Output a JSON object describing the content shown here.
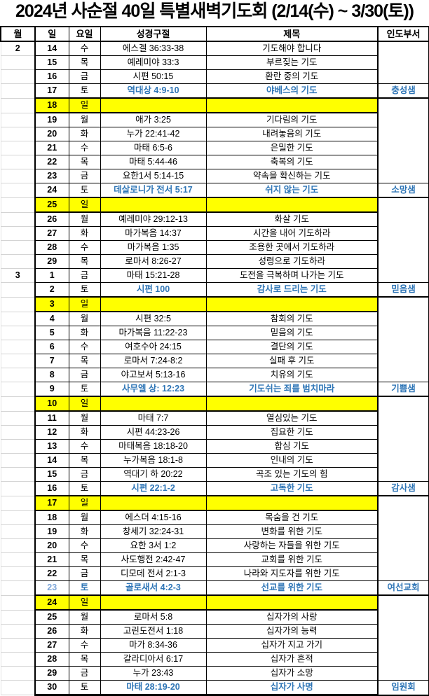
{
  "title": "2024년 사순절 40일 특별새벽기도회 (2/14(수) ~ 3/30(토))",
  "colors": {
    "accent_blue": "#2E75B6",
    "light_blue_day": "#7EA6D8",
    "sunday_highlight": "#FFFF00",
    "grid_black": "#000000",
    "month_gridline": "#D4D4D4"
  },
  "table": {
    "columns": [
      "월",
      "일",
      "요일",
      "성경구절",
      "제목",
      "인도부서"
    ],
    "rows": [
      {
        "month": "2",
        "day": "14",
        "weekday": "수",
        "verse": "에스겔 36:33-38",
        "topic": "기도해야 합니다",
        "leader": ""
      },
      {
        "month": "",
        "day": "15",
        "weekday": "목",
        "verse": "예레미야 33:3",
        "topic": "부르짖는 기도",
        "leader": ""
      },
      {
        "month": "",
        "day": "16",
        "weekday": "금",
        "verse": "시편 50:15",
        "topic": "환란 중의 기도",
        "leader": ""
      },
      {
        "month": "",
        "day": "17",
        "weekday": "토",
        "verse": "역대상 4:9-10",
        "topic": "야베스의 기도",
        "leader": "충성샘",
        "sat": true
      },
      {
        "month": "",
        "day": "18",
        "weekday": "일",
        "verse": "",
        "topic": "",
        "leader": "",
        "sunday": true
      },
      {
        "month": "",
        "day": "19",
        "weekday": "월",
        "verse": "애가 3:25",
        "topic": "기다림의 기도",
        "leader": ""
      },
      {
        "month": "",
        "day": "20",
        "weekday": "화",
        "verse": "누가 22:41-42",
        "topic": "내려놓음의 기도",
        "leader": ""
      },
      {
        "month": "",
        "day": "21",
        "weekday": "수",
        "verse": "마태 6:5-6",
        "topic": "은밀한 기도",
        "leader": ""
      },
      {
        "month": "",
        "day": "22",
        "weekday": "목",
        "verse": "마태 5:44-46",
        "topic": "축복의 기도",
        "leader": ""
      },
      {
        "month": "",
        "day": "23",
        "weekday": "금",
        "verse": "요한1서 5:14-15",
        "topic": "약속을 확신하는 기도",
        "leader": ""
      },
      {
        "month": "",
        "day": "24",
        "weekday": "토",
        "verse": "데살로니가 전서 5:17",
        "topic": "쉬지 않는 기도",
        "leader": "소망샘",
        "sat": true
      },
      {
        "month": "",
        "day": "25",
        "weekday": "일",
        "verse": "",
        "topic": "",
        "leader": "",
        "sunday": true
      },
      {
        "month": "",
        "day": "26",
        "weekday": "월",
        "verse": "예레미야 29:12-13",
        "topic": "화살 기도",
        "leader": ""
      },
      {
        "month": "",
        "day": "27",
        "weekday": "화",
        "verse": "마가복음 14:37",
        "topic": "시간을 내어 기도하라",
        "leader": ""
      },
      {
        "month": "",
        "day": "28",
        "weekday": "수",
        "verse": "마가복음 1:35",
        "topic": "조용한 곳에서 기도하라",
        "leader": ""
      },
      {
        "month": "",
        "day": "29",
        "weekday": "목",
        "verse": "로마서 8:26-27",
        "topic": "성령으로 기도하라",
        "leader": ""
      },
      {
        "month": "3",
        "day": "1",
        "weekday": "금",
        "verse": "마태 15:21-28",
        "topic": "도전을 극복하며 나가는 기도",
        "leader": ""
      },
      {
        "month": "",
        "day": "2",
        "weekday": "토",
        "verse": "시편 100",
        "topic": "감사로 드리는 기도",
        "leader": "믿음샘",
        "sat": true
      },
      {
        "month": "",
        "day": "3",
        "weekday": "일",
        "verse": "",
        "topic": "",
        "leader": "",
        "sunday": true
      },
      {
        "month": "",
        "day": "4",
        "weekday": "월",
        "verse": "시편 32:5",
        "topic": "참회의 기도",
        "leader": ""
      },
      {
        "month": "",
        "day": "5",
        "weekday": "화",
        "verse": "마가복음 11:22-23",
        "topic": "믿음의 기도",
        "leader": ""
      },
      {
        "month": "",
        "day": "6",
        "weekday": "수",
        "verse": "여호수아 24:15",
        "topic": "결단의 기도",
        "leader": ""
      },
      {
        "month": "",
        "day": "7",
        "weekday": "목",
        "verse": "로마서 7:24-8:2",
        "topic": "실패 후 기도",
        "leader": ""
      },
      {
        "month": "",
        "day": "8",
        "weekday": "금",
        "verse": "야고보서 5:13-16",
        "topic": "치유의 기도",
        "leader": ""
      },
      {
        "month": "",
        "day": "9",
        "weekday": "토",
        "verse": "사무엘 상: 12:23",
        "topic": "기도쉬는 죄를 범치마라",
        "leader": "기쁨샘",
        "sat": true
      },
      {
        "month": "",
        "day": "10",
        "weekday": "일",
        "verse": "",
        "topic": "",
        "leader": "",
        "sunday": true
      },
      {
        "month": "",
        "day": "11",
        "weekday": "월",
        "verse": "마태 7:7",
        "topic": "열심있는 기도",
        "leader": ""
      },
      {
        "month": "",
        "day": "12",
        "weekday": "화",
        "verse": "시편 44:23-26",
        "topic": "집요한 기도",
        "leader": ""
      },
      {
        "month": "",
        "day": "13",
        "weekday": "수",
        "verse": "마태복음 18:18-20",
        "topic": "합심 기도",
        "leader": ""
      },
      {
        "month": "",
        "day": "14",
        "weekday": "목",
        "verse": "누가복음 18:1-8",
        "topic": "인내의 기도",
        "leader": ""
      },
      {
        "month": "",
        "day": "15",
        "weekday": "금",
        "verse": "역대기 하 20:22",
        "topic": "곡조 있는 기도의 힘",
        "leader": ""
      },
      {
        "month": "",
        "day": "16",
        "weekday": "토",
        "verse": "시편 22:1-2",
        "topic": "고독한 기도",
        "leader": "감사샘",
        "sat": true
      },
      {
        "month": "",
        "day": "17",
        "weekday": "일",
        "verse": "",
        "topic": "",
        "leader": "",
        "sunday": true
      },
      {
        "month": "",
        "day": "18",
        "weekday": "월",
        "verse": "에스더 4:15-16",
        "topic": "목숨을 건 기도",
        "leader": ""
      },
      {
        "month": "",
        "day": "19",
        "weekday": "화",
        "verse": "창세기 32:24-31",
        "topic": "변화를 위한 기도",
        "leader": ""
      },
      {
        "month": "",
        "day": "20",
        "weekday": "수",
        "verse": "요한 3서 1:2",
        "topic": "사랑하는 자들을 위한 기도",
        "leader": ""
      },
      {
        "month": "",
        "day": "21",
        "weekday": "목",
        "verse": "사도행전 2:42-47",
        "topic": "교회를 위한 기도",
        "leader": ""
      },
      {
        "month": "",
        "day": "22",
        "weekday": "금",
        "verse": "디모데 전서 2:1-3",
        "topic": "나라와 지도자를 위한 기도",
        "leader": ""
      },
      {
        "month": "",
        "day": "23",
        "weekday": "토",
        "verse": "골로새서 4:2-3",
        "topic": "선교를 위한 기도",
        "leader": "여선교회",
        "sat": true,
        "day_accent": true
      },
      {
        "month": "",
        "day": "24",
        "weekday": "일",
        "verse": "",
        "topic": "",
        "leader": "",
        "sunday": true
      },
      {
        "month": "",
        "day": "25",
        "weekday": "월",
        "verse": "로마서 5:8",
        "topic": "십자가의 사랑",
        "leader": ""
      },
      {
        "month": "",
        "day": "26",
        "weekday": "화",
        "verse": "고린도전서 1:18",
        "topic": "십자가의 능력",
        "leader": ""
      },
      {
        "month": "",
        "day": "27",
        "weekday": "수",
        "verse": "마가 8:34-36",
        "topic": "십자가 지고 가기",
        "leader": ""
      },
      {
        "month": "",
        "day": "28",
        "weekday": "목",
        "verse": "갈라디아서 6:17",
        "topic": "십자가 흔적",
        "leader": ""
      },
      {
        "month": "",
        "day": "29",
        "weekday": "금",
        "verse": "누가 23:43",
        "topic": "십자가 소망",
        "leader": ""
      },
      {
        "month": "",
        "day": "30",
        "weekday": "토",
        "verse": "마태 28:19-20",
        "topic": "십자가 사명",
        "leader": "임원회",
        "sat": true
      }
    ]
  }
}
